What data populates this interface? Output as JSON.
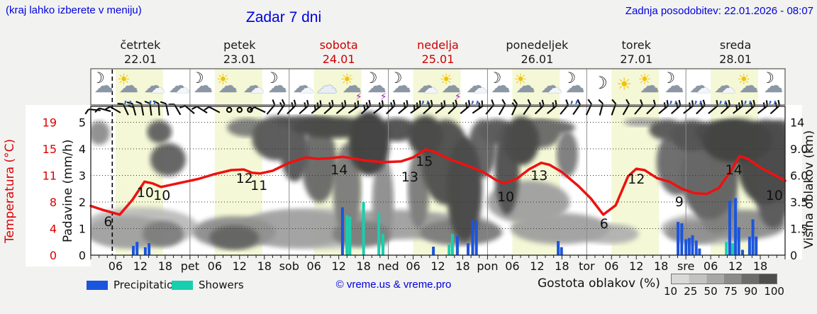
{
  "header": {
    "hint": "(kraj lahko izberete v meniju)",
    "title": "Zadar 7 dni",
    "updated": "Zadnja posodobitev: 22.01.2026 - 08:07"
  },
  "days": [
    {
      "name": "četrtek",
      "date": "22.01",
      "weekend": false
    },
    {
      "name": "petek",
      "date": "23.01",
      "weekend": false
    },
    {
      "name": "sobota",
      "date": "24.01",
      "weekend": true
    },
    {
      "name": "nedelja",
      "date": "25.01",
      "weekend": true
    },
    {
      "name": "ponedeljek",
      "date": "26.01",
      "weekend": false
    },
    {
      "name": "torek",
      "date": "27.01",
      "weekend": false
    },
    {
      "name": "sreda",
      "date": "28.01",
      "weekend": false
    }
  ],
  "icons": [
    "moon-cloud",
    "sun-cloud-rain",
    "cloud-rain",
    "cloudy",
    "moon-cloud",
    "sun-cloud",
    "cloudy",
    "moon-cloud",
    "cloudy",
    "cloud",
    "sun-thunder",
    "moon-thunder",
    "moon-cloud",
    "cloud-rain",
    "sun-thunder",
    "cloud-rain",
    "moon-cloud",
    "sun-cloud",
    "cloudy",
    "moon-cloud-rain",
    "moon",
    "sun",
    "sun-cloud",
    "moon-cloud-rain",
    "cloud-rain",
    "cloud-rain",
    "sun-cloud-rain",
    "moon-cloud-rain"
  ],
  "axes": {
    "temp_label": "Temperatura (°C)",
    "temp_tick_labels": [
      "19",
      "15",
      "11",
      "8",
      "4",
      "0"
    ],
    "precip_label": "Padavine (mm/h)",
    "precip_tick_labels": [
      "5",
      "4",
      "3",
      "2",
      "1",
      "0"
    ],
    "cloud_label": "Višina oblakov (km)",
    "cloud_tick_labels": [
      "14",
      "9.0",
      "6.0",
      "3.5",
      "1.5",
      "0"
    ]
  },
  "legend": {
    "precip": "Precipitation",
    "showers": "Showers",
    "copyright": "© vreme.us & vreme.pro",
    "cloud_density": "Gostota oblakov (%)",
    "density_ticks": [
      "10",
      "25",
      "50",
      "75",
      "90",
      "100"
    ]
  },
  "colors": {
    "accent_blue_text": "#0000dd",
    "weekend_red": "#cc0000",
    "temp_line": "#ee1111",
    "precip_bar": "#1b55dd",
    "showers_bar": "#17cfae",
    "daylight_band": "#f4f8d6",
    "plot_bg": "#ffffff"
  },
  "chart_data": {
    "type": "line",
    "subtype": "meteogram",
    "title": "Zadar 7 dni",
    "x_axis": {
      "unit": "hour",
      "range": [
        0,
        168
      ],
      "hours_per_day": 24,
      "hour_labels": [
        "06",
        "12",
        "18"
      ],
      "day_abbrevs": [
        "pet",
        "sob",
        "ned",
        "pon",
        "tor",
        "sre"
      ],
      "daylight_band_hours": [
        6,
        17.5
      ],
      "now_line_hour": 5.2
    },
    "temp_axis_ticks": [
      0,
      4,
      8,
      11,
      15,
      19
    ],
    "precip_axis_ticks": [
      0,
      1,
      2,
      3,
      4,
      5
    ],
    "cloud_axis_ticks_km": [
      0,
      1.5,
      3.5,
      6,
      9,
      14
    ],
    "temperature_points": [
      [
        0,
        7.4
      ],
      [
        3,
        6.8
      ],
      [
        7,
        6.1
      ],
      [
        10,
        8.2
      ],
      [
        13,
        10.3
      ],
      [
        15,
        10.1
      ],
      [
        17,
        9.7
      ],
      [
        19,
        9.9
      ],
      [
        22,
        10.2
      ],
      [
        26,
        10.6
      ],
      [
        30,
        11.2
      ],
      [
        34,
        11.8
      ],
      [
        37,
        11.9
      ],
      [
        39,
        11.4
      ],
      [
        41,
        11.3
      ],
      [
        44,
        11.7
      ],
      [
        48,
        12.9
      ],
      [
        52,
        13.7
      ],
      [
        55,
        13.5
      ],
      [
        58,
        13.6
      ],
      [
        61,
        13.8
      ],
      [
        64,
        13.5
      ],
      [
        67,
        13.2
      ],
      [
        71,
        13.0
      ],
      [
        75,
        13.1
      ],
      [
        78,
        13.7
      ],
      [
        81,
        14.9
      ],
      [
        83,
        14.6
      ],
      [
        87,
        13.4
      ],
      [
        91,
        12.5
      ],
      [
        95,
        11.5
      ],
      [
        98,
        10.5
      ],
      [
        100,
        10.1
      ],
      [
        103,
        10.6
      ],
      [
        106,
        11.9
      ],
      [
        109,
        12.9
      ],
      [
        111,
        12.6
      ],
      [
        114,
        11.5
      ],
      [
        118,
        9.8
      ],
      [
        121,
        8.4
      ],
      [
        124,
        6.1
      ],
      [
        127,
        7.5
      ],
      [
        130,
        10.9
      ],
      [
        132,
        12.0
      ],
      [
        134,
        11.8
      ],
      [
        137,
        10.7
      ],
      [
        140,
        10.3
      ],
      [
        143,
        9.5
      ],
      [
        146,
        9.0
      ],
      [
        149,
        8.9
      ],
      [
        152,
        9.6
      ],
      [
        155,
        11.8
      ],
      [
        157,
        13.9
      ],
      [
        159,
        13.5
      ],
      [
        162,
        12.2
      ],
      [
        165,
        11.2
      ],
      [
        168,
        10.4
      ]
    ],
    "temperature_labels": [
      [
        4.2,
        1.25,
        "6"
      ],
      [
        13.2,
        2.35,
        "10"
      ],
      [
        17.2,
        2.24,
        "10"
      ],
      [
        37.2,
        2.88,
        "12"
      ],
      [
        40.7,
        2.61,
        "11"
      ],
      [
        60.1,
        3.2,
        "14"
      ],
      [
        77.2,
        2.93,
        "13"
      ],
      [
        80.7,
        3.52,
        "15"
      ],
      [
        100.4,
        2.19,
        "10"
      ],
      [
        108.5,
        2.99,
        "13"
      ],
      [
        124.2,
        1.17,
        "6"
      ],
      [
        132,
        2.85,
        "12"
      ],
      [
        142.4,
        2.0,
        "9"
      ],
      [
        155.6,
        3.2,
        "14"
      ],
      [
        165.4,
        2.24,
        "10"
      ]
    ],
    "precipitation_bars_mmh": [
      [
        10.3,
        0.35
      ],
      [
        11.2,
        0.5
      ],
      [
        13.2,
        0.3
      ],
      [
        14.1,
        0.45
      ],
      [
        60.9,
        1.8
      ],
      [
        82.9,
        0.32
      ],
      [
        88.7,
        0.72
      ],
      [
        91.3,
        0.45
      ],
      [
        92.4,
        1.32
      ],
      [
        93.3,
        1.3
      ],
      [
        113.1,
        0.53
      ],
      [
        113.9,
        0.3
      ],
      [
        142.1,
        1.25
      ],
      [
        143,
        1.2
      ],
      [
        144,
        0.6
      ],
      [
        144.8,
        0.65
      ],
      [
        145.6,
        0.75
      ],
      [
        146.5,
        0.55
      ],
      [
        147.3,
        0.25
      ],
      [
        154.6,
        2.05
      ],
      [
        156,
        2.15
      ],
      [
        156.8,
        1.05
      ],
      [
        157.7,
        0.2
      ],
      [
        159.4,
        0.7
      ],
      [
        160.2,
        1.35
      ],
      [
        161,
        0.7
      ]
    ],
    "showers_bars_mmh": [
      [
        62,
        1.5
      ],
      [
        62.7,
        1.45
      ],
      [
        66,
        2.0
      ],
      [
        69.7,
        1.6
      ],
      [
        70.7,
        0.8
      ],
      [
        86.7,
        0.4
      ],
      [
        87.5,
        0.8
      ],
      [
        153.8,
        0.5
      ],
      [
        155.3,
        0.45
      ]
    ],
    "cloud_blobs": [
      [
        2,
        12,
        2.6,
        2.5,
        50
      ],
      [
        16.6,
        12.2,
        3,
        2.5,
        75
      ],
      [
        18.7,
        7.8,
        4.3,
        2,
        75
      ],
      [
        8.9,
        1.3,
        10,
        1,
        40
      ],
      [
        17.5,
        1.2,
        5,
        0.8,
        60
      ],
      [
        34.7,
        1.3,
        10,
        1,
        50
      ],
      [
        34.7,
        1.0,
        6,
        0.7,
        75
      ],
      [
        50,
        1.5,
        14,
        1.2,
        40
      ],
      [
        65.5,
        1.2,
        7,
        0.8,
        60
      ],
      [
        74,
        1.8,
        15,
        1,
        40
      ],
      [
        89.6,
        1.3,
        10,
        0.8,
        60
      ],
      [
        38,
        13,
        5,
        2.5,
        60
      ],
      [
        45,
        11,
        6,
        4,
        80
      ],
      [
        49.3,
        8.7,
        3.4,
        4,
        80
      ],
      [
        51.8,
        14,
        7,
        2.5,
        85
      ],
      [
        58.7,
        13,
        10,
        3,
        90
      ],
      [
        55.3,
        7.3,
        4.3,
        4.5,
        70
      ],
      [
        62,
        4.7,
        3.4,
        4,
        60
      ],
      [
        67.3,
        10,
        5,
        5,
        95
      ],
      [
        70.7,
        3.5,
        2.6,
        3.5,
        50
      ],
      [
        74,
        12.6,
        5,
        3,
        85
      ],
      [
        81,
        11.5,
        4.3,
        4,
        90
      ],
      [
        79.3,
        4.7,
        2.6,
        3.5,
        60
      ],
      [
        86,
        7.5,
        6,
        5,
        85
      ],
      [
        90.4,
        4.7,
        4.3,
        4.5,
        90
      ],
      [
        94.7,
        9,
        3.4,
        4,
        75
      ],
      [
        98.2,
        12.2,
        4.3,
        3,
        80
      ],
      [
        100.7,
        6.7,
        3,
        5,
        85
      ],
      [
        104.2,
        10.5,
        4.3,
        4,
        90
      ],
      [
        108.5,
        11.8,
        5,
        3,
        70
      ],
      [
        105.9,
        3.5,
        10,
        1.8,
        40
      ],
      [
        115.3,
        8.4,
        2.6,
        3,
        60
      ],
      [
        113.6,
        1.5,
        12,
        1,
        40
      ],
      [
        110.2,
        13,
        7,
        2,
        70
      ],
      [
        125.6,
        1.2,
        7,
        0.6,
        30
      ],
      [
        133.3,
        14,
        4.3,
        1.5,
        40
      ],
      [
        139.4,
        12.6,
        4.3,
        2.5,
        80
      ],
      [
        141.9,
        7.5,
        5,
        4,
        70
      ],
      [
        145.4,
        11.5,
        5,
        3,
        85
      ],
      [
        149.7,
        6,
        7,
        4.5,
        75
      ],
      [
        153.1,
        12.2,
        7,
        2.5,
        90
      ],
      [
        156.5,
        10.5,
        8.6,
        3.5,
        95
      ],
      [
        163.4,
        7.5,
        7,
        5,
        90
      ],
      [
        151.4,
        3.5,
        5,
        2.5,
        60
      ],
      [
        158.2,
        1.8,
        10,
        1,
        50
      ],
      [
        165.1,
        4.7,
        4.3,
        3.5,
        80
      ],
      [
        166.8,
        11.5,
        3.4,
        3,
        85
      ],
      [
        146.2,
        1.3,
        7,
        0.7,
        50
      ],
      [
        12,
        1.6,
        14,
        1.3,
        25
      ],
      [
        55,
        1.5,
        20,
        1.3,
        25
      ],
      [
        88,
        1.5,
        10,
        1,
        25
      ],
      [
        150,
        1.5,
        12,
        1,
        30
      ]
    ],
    "wind_barbs": [
      [
        1,
        185,
        1
      ],
      [
        3.5,
        195,
        1
      ],
      [
        6,
        210,
        1
      ],
      [
        8.5,
        245,
        1
      ],
      [
        10.5,
        255,
        2
      ],
      [
        12.5,
        260,
        1
      ],
      [
        14.5,
        263,
        1
      ],
      [
        16.5,
        266,
        1
      ],
      [
        18.5,
        258,
        1
      ],
      [
        21,
        240,
        1
      ],
      [
        24,
        220,
        1
      ],
      [
        27,
        212,
        1
      ],
      [
        30,
        208,
        1
      ],
      [
        33.5,
        0,
        0
      ],
      [
        36,
        0,
        0
      ],
      [
        38.5,
        0,
        0
      ],
      [
        41,
        205,
        1
      ],
      [
        43.5,
        310,
        1
      ],
      [
        46,
        305,
        2
      ],
      [
        48.5,
        315,
        2
      ],
      [
        51.5,
        318,
        2
      ],
      [
        54.5,
        322,
        3
      ],
      [
        57.5,
        318,
        2
      ],
      [
        60.5,
        320,
        2
      ],
      [
        63.5,
        325,
        2
      ],
      [
        66.5,
        318,
        3
      ],
      [
        69.5,
        322,
        2
      ],
      [
        72.5,
        315,
        2
      ],
      [
        75.5,
        320,
        2
      ],
      [
        78.5,
        325,
        3
      ],
      [
        81.5,
        318,
        2
      ],
      [
        84.5,
        322,
        2
      ],
      [
        87.5,
        316,
        2
      ],
      [
        90.5,
        320,
        2
      ],
      [
        93.5,
        325,
        2
      ],
      [
        96.5,
        310,
        1
      ],
      [
        99.5,
        300,
        1
      ],
      [
        102.5,
        295,
        2
      ],
      [
        105.5,
        305,
        1
      ],
      [
        108.5,
        315,
        2
      ],
      [
        111.5,
        320,
        2
      ],
      [
        114.5,
        310,
        1
      ],
      [
        117.5,
        305,
        1
      ],
      [
        120.5,
        295,
        1
      ],
      [
        123.5,
        285,
        1
      ],
      [
        126.5,
        290,
        1
      ],
      [
        129.5,
        300,
        1
      ],
      [
        132.5,
        310,
        1
      ],
      [
        135.5,
        315,
        1
      ],
      [
        138.5,
        320,
        2
      ],
      [
        141.5,
        318,
        2
      ],
      [
        144.5,
        322,
        2
      ],
      [
        147.5,
        315,
        2
      ],
      [
        150.5,
        320,
        1
      ],
      [
        153.5,
        318,
        2
      ],
      [
        156.5,
        322,
        3
      ],
      [
        159.5,
        318,
        2
      ],
      [
        162.5,
        322,
        2
      ],
      [
        165.5,
        318,
        2
      ]
    ]
  }
}
